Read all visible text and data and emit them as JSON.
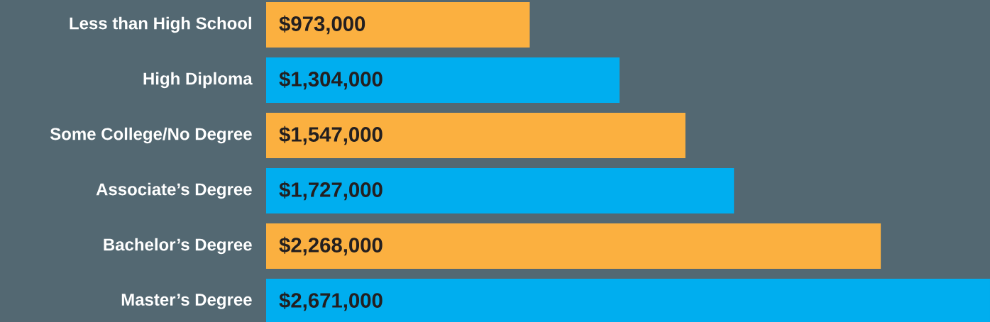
{
  "chart_data": {
    "type": "bar",
    "orientation": "horizontal",
    "categories": [
      "Less than High School",
      "High Diploma",
      "Some College/No Degree",
      "Associate’s Degree",
      "Bachelor’s Degree",
      "Master’s Degree"
    ],
    "values": [
      973000,
      1304000,
      1547000,
      1727000,
      2268000,
      2671000
    ],
    "colors": [
      "#fbb040",
      "#00aeef",
      "#fbb040",
      "#00aeef",
      "#fbb040",
      "#00aeef"
    ],
    "value_labels": [
      "$973,000",
      "$1,304,000",
      "$1,547,000",
      "$1,727,000",
      "$2,268,000",
      "$2,671,000"
    ]
  }
}
